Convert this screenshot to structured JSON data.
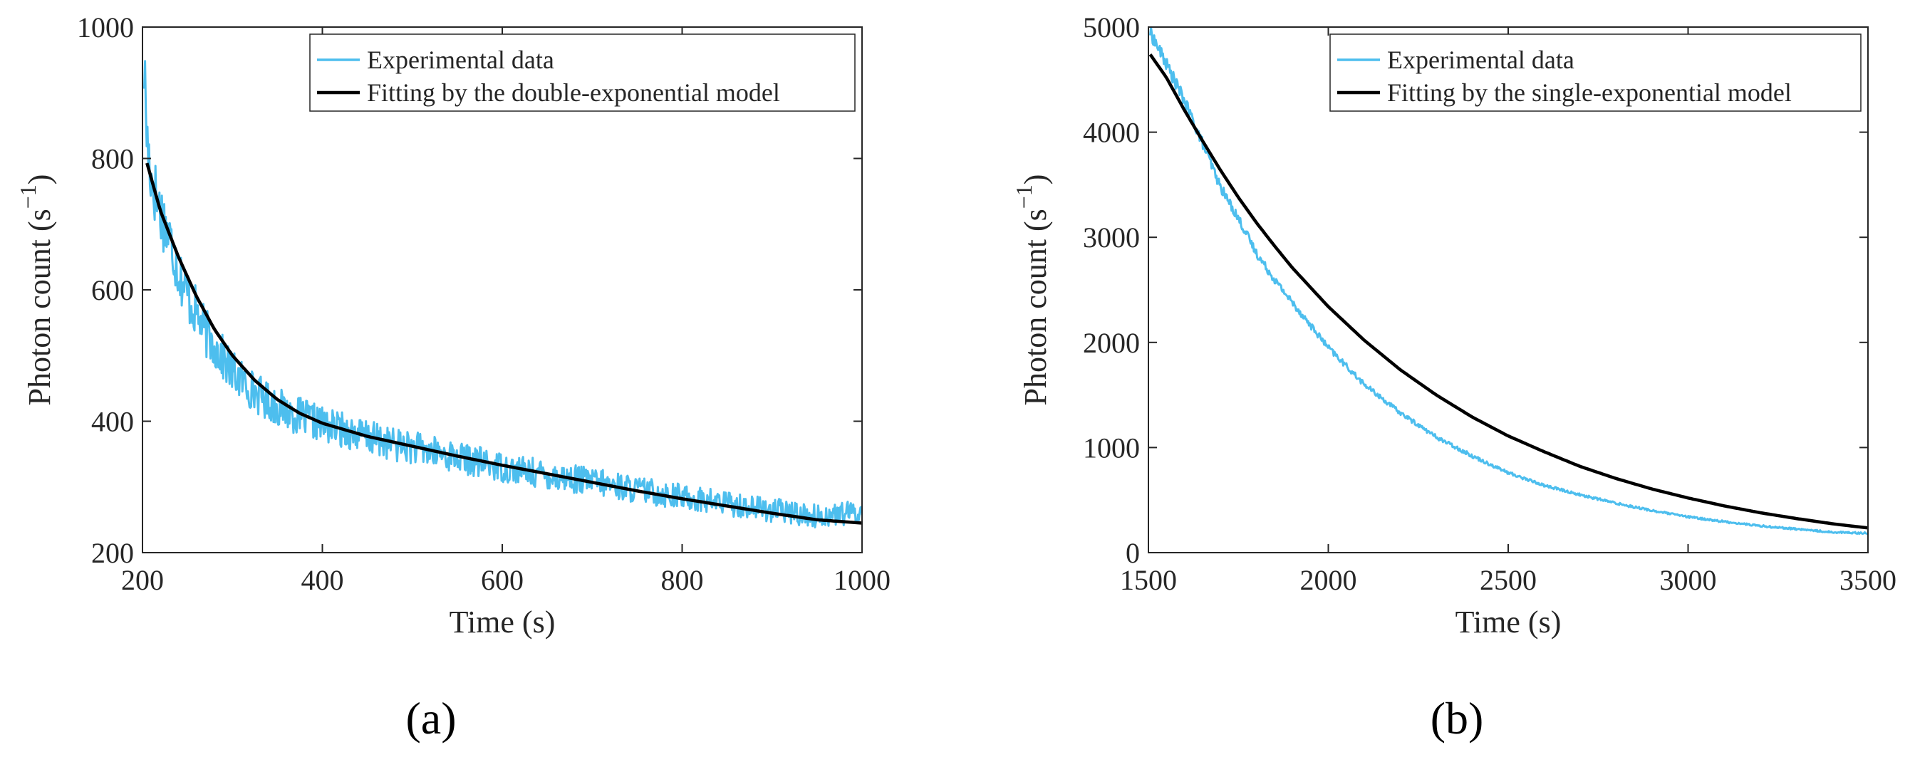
{
  "figure": {
    "panels": [
      "(a)",
      "(b)"
    ]
  },
  "colors": {
    "experimental": "#4DBEEE",
    "fit": "#000000",
    "axis": "#262626"
  },
  "chart_data": [
    {
      "type": "line",
      "panel_label": "(a)",
      "title": "",
      "xlabel": "Time (s)",
      "ylabel_main": "Photon count (s",
      "ylabel_sup": "−1",
      "ylabel_close": ")",
      "xlim": [
        200,
        1000
      ],
      "ylim": [
        200,
        1000
      ],
      "xticks": [
        200,
        400,
        600,
        800,
        1000
      ],
      "yticks": [
        200,
        400,
        600,
        800,
        1000
      ],
      "xtick_labels": [
        "200",
        "400",
        "600",
        "800",
        "1000"
      ],
      "ytick_labels": [
        "200",
        "400",
        "600",
        "800",
        "1000"
      ],
      "legend_position": "top-right",
      "series": [
        {
          "name": "Experimental data",
          "color": "#4DBEEE",
          "x": [
            202,
            205,
            210,
            215,
            220,
            230,
            240,
            250,
            260,
            270,
            280,
            290,
            300,
            320,
            340,
            360,
            380,
            400,
            420,
            440,
            460,
            480,
            500,
            550,
            600,
            650,
            700,
            750,
            800,
            850,
            900,
            950,
            1000
          ],
          "y": [
            940,
            830,
            770,
            745,
            720,
            680,
            630,
            590,
            565,
            535,
            515,
            495,
            475,
            450,
            430,
            415,
            405,
            395,
            388,
            380,
            372,
            365,
            360,
            345,
            330,
            318,
            308,
            296,
            285,
            275,
            265,
            255,
            262
          ]
        },
        {
          "name": "Fitting by the double-exponential model",
          "color": "#000000",
          "x": [
            205,
            220,
            240,
            260,
            280,
            300,
            325,
            350,
            375,
            400,
            450,
            500,
            550,
            600,
            650,
            700,
            750,
            800,
            850,
            900,
            950,
            1000
          ],
          "y": [
            793,
            720,
            650,
            590,
            540,
            500,
            462,
            433,
            412,
            397,
            377,
            362,
            347,
            333,
            320,
            307,
            294,
            282,
            271,
            260,
            250,
            245
          ]
        }
      ]
    },
    {
      "type": "line",
      "panel_label": "(b)",
      "title": "",
      "xlabel": "Time (s)",
      "ylabel_main": "Photon count (s",
      "ylabel_sup": "−1",
      "ylabel_close": ")",
      "xlim": [
        1500,
        3500
      ],
      "ylim": [
        0,
        5000
      ],
      "xticks": [
        1500,
        2000,
        2500,
        3000,
        3500
      ],
      "yticks": [
        0,
        1000,
        2000,
        3000,
        4000,
        5000
      ],
      "xtick_labels": [
        "1500",
        "2000",
        "2500",
        "3000",
        "3500"
      ],
      "ytick_labels": [
        "0",
        "1000",
        "2000",
        "3000",
        "4000",
        "5000"
      ],
      "legend_position": "top-right",
      "series": [
        {
          "name": "Experimental data",
          "color": "#4DBEEE",
          "x": [
            1505,
            1550,
            1600,
            1650,
            1700,
            1750,
            1800,
            1850,
            1900,
            2000,
            2100,
            2200,
            2300,
            2400,
            2500,
            2600,
            2700,
            2800,
            2900,
            3000,
            3100,
            3200,
            3300,
            3400,
            3500
          ],
          "y": [
            4950,
            4650,
            4300,
            3900,
            3480,
            3180,
            2850,
            2600,
            2380,
            1950,
            1600,
            1330,
            1100,
            920,
            760,
            640,
            550,
            470,
            400,
            340,
            295,
            255,
            225,
            195,
            185
          ]
        },
        {
          "name": "Fitting by the single-exponential model",
          "color": "#000000",
          "x": [
            1505,
            1550,
            1600,
            1650,
            1700,
            1750,
            1800,
            1850,
            1900,
            2000,
            2100,
            2200,
            2300,
            2400,
            2500,
            2600,
            2700,
            2800,
            2900,
            3000,
            3100,
            3200,
            3300,
            3400,
            3500
          ],
          "y": [
            4740,
            4520,
            4210,
            3920,
            3640,
            3380,
            3140,
            2920,
            2710,
            2340,
            2020,
            1740,
            1500,
            1290,
            1110,
            960,
            820,
            705,
            605,
            520,
            445,
            380,
            325,
            275,
            235
          ]
        }
      ]
    }
  ]
}
